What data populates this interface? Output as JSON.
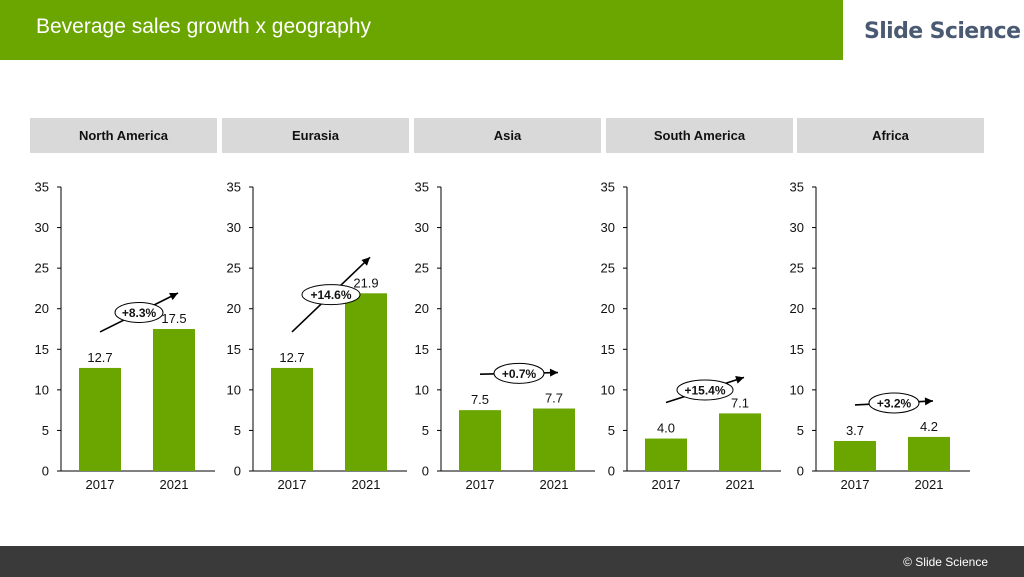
{
  "header": {
    "title": "Beverage sales growth x geography",
    "brand": "Slide Science"
  },
  "footer": {
    "copyright": "© Slide Science"
  },
  "colors": {
    "bar": "#6aa500",
    "title_bar": "#6aa500",
    "header_box": "#d9d9d9",
    "footer_bar": "#3a3a3a"
  },
  "chart_data": [
    {
      "type": "bar",
      "title": "North America",
      "categories": [
        "2017",
        "2021"
      ],
      "values": [
        12.7,
        17.5
      ],
      "value_labels": [
        "12.7",
        "17.5"
      ],
      "growth_label": "+8.3%",
      "ylim": [
        0,
        35
      ],
      "yticks": [
        "0",
        "5",
        "10",
        "15",
        "20",
        "25",
        "30",
        "35"
      ],
      "xlabel": "",
      "ylabel": ""
    },
    {
      "type": "bar",
      "title": "Eurasia",
      "categories": [
        "2017",
        "2021"
      ],
      "values": [
        12.7,
        21.9
      ],
      "value_labels": [
        "12.7",
        "21.9"
      ],
      "growth_label": "+14.6%",
      "ylim": [
        0,
        35
      ],
      "yticks": [
        "0",
        "5",
        "10",
        "15",
        "20",
        "25",
        "30",
        "35"
      ],
      "xlabel": "",
      "ylabel": ""
    },
    {
      "type": "bar",
      "title": "Asia",
      "categories": [
        "2017",
        "2021"
      ],
      "values": [
        7.5,
        7.7
      ],
      "value_labels": [
        "7.5",
        "7.7"
      ],
      "growth_label": "+0.7%",
      "ylim": [
        0,
        35
      ],
      "yticks": [
        "0",
        "5",
        "10",
        "15",
        "20",
        "25",
        "30",
        "35"
      ],
      "xlabel": "",
      "ylabel": ""
    },
    {
      "type": "bar",
      "title": "South America",
      "categories": [
        "2017",
        "2021"
      ],
      "values": [
        4.0,
        7.1
      ],
      "value_labels": [
        "4.0",
        "7.1"
      ],
      "growth_label": "+15.4%",
      "ylim": [
        0,
        35
      ],
      "yticks": [
        "0",
        "5",
        "10",
        "15",
        "20",
        "25",
        "30",
        "35"
      ],
      "xlabel": "",
      "ylabel": ""
    },
    {
      "type": "bar",
      "title": "Africa",
      "categories": [
        "2017",
        "2021"
      ],
      "values": [
        3.7,
        4.2
      ],
      "value_labels": [
        "3.7",
        "4.2"
      ],
      "growth_label": "+3.2%",
      "ylim": [
        0,
        35
      ],
      "yticks": [
        "0",
        "5",
        "10",
        "15",
        "20",
        "25",
        "30",
        "35"
      ],
      "xlabel": "",
      "ylabel": ""
    }
  ]
}
